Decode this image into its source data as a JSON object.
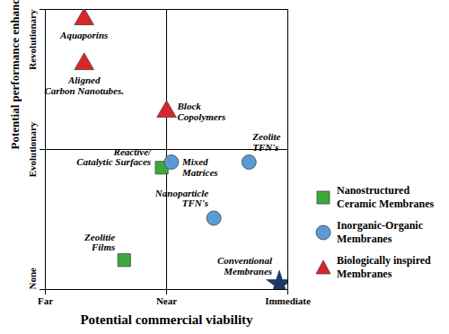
{
  "chart_data": {
    "type": "scatter",
    "x_label": "Potential commercial viability",
    "y_label": "Potential performance enhancement",
    "xlim": [
      0,
      2
    ],
    "ylim": [
      0,
      2
    ],
    "xticks": [
      {
        "value": 0,
        "label": "Far"
      },
      {
        "value": 1,
        "label": "Near"
      },
      {
        "value": 2,
        "label": "Immediate"
      }
    ],
    "yticks": [
      {
        "value": 0,
        "label": "None"
      },
      {
        "value": 1,
        "label": "Evolutionary"
      },
      {
        "value": 2,
        "label": "Revolutionary"
      }
    ],
    "grid": true,
    "legend": "right",
    "series": [
      {
        "name": "Nanostructured Ceramic Membranes",
        "color": "#3aab3a",
        "marker": "square",
        "x": [
          0.96,
          0.65
        ],
        "y": [
          0.87,
          0.21
        ],
        "labels": [
          "Reactive/\nCatalytic Surfaces",
          "Zeolitie\nFilms"
        ]
      },
      {
        "name": "Inorganic-Organic Membranes",
        "color": "#5b9bd5",
        "marker": "circle",
        "x": [
          1.04,
          1.68,
          1.39
        ],
        "y": [
          0.91,
          0.91,
          0.51
        ],
        "labels": [
          "Mixed\nMatrices",
          "Zeolite\nTFN's",
          "Nanoparticle\nTFN's"
        ]
      },
      {
        "name": "Biologically inspired Membranes",
        "color": "#d9262b",
        "marker": "triangle",
        "x": [
          0.32,
          0.32,
          1.0
        ],
        "y": [
          1.93,
          1.61,
          1.27
        ],
        "labels": [
          "Aquaporins",
          "Aligned\nCarbon Nanotubes.",
          "Block\nCopolymers"
        ]
      },
      {
        "color": "#1f3864",
        "marker": "star",
        "x": [
          1.93
        ],
        "y": [
          0.04
        ],
        "labels": [
          "Conventional\nMembranes"
        ]
      }
    ]
  }
}
